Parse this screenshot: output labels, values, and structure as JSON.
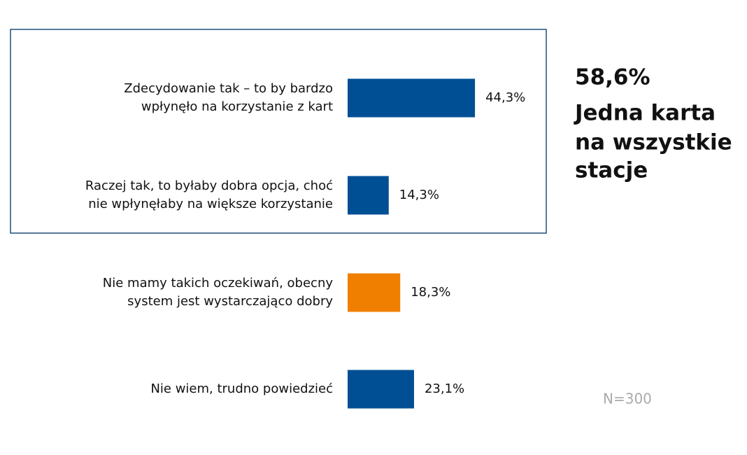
{
  "chart_data": {
    "type": "bar",
    "orientation": "horizontal",
    "categories": [
      [
        "Zdecydowanie tak – to by bardzo",
        "wpłynęło na korzystanie z kart"
      ],
      [
        "Raczej tak, to byłaby dobra opcja, choć",
        "nie wpłynęłaby na większe korzystanie"
      ],
      [
        "Nie mamy takich oczekiwań, obecny",
        "system jest wystarczająco dobry"
      ],
      [
        "Nie wiem, trudno powiedzieć"
      ]
    ],
    "values": [
      44.3,
      14.3,
      18.3,
      23.1
    ],
    "value_labels": [
      "44,3%",
      "14,3%",
      "18,3%",
      "23,1%"
    ],
    "colors": [
      "#004f94",
      "#004f94",
      "#f07f00",
      "#004f94"
    ],
    "annotation": {
      "value": "58,6%",
      "text": [
        "Jedna karta",
        "na wszystkie",
        "stacje"
      ]
    },
    "note": "N=300"
  }
}
